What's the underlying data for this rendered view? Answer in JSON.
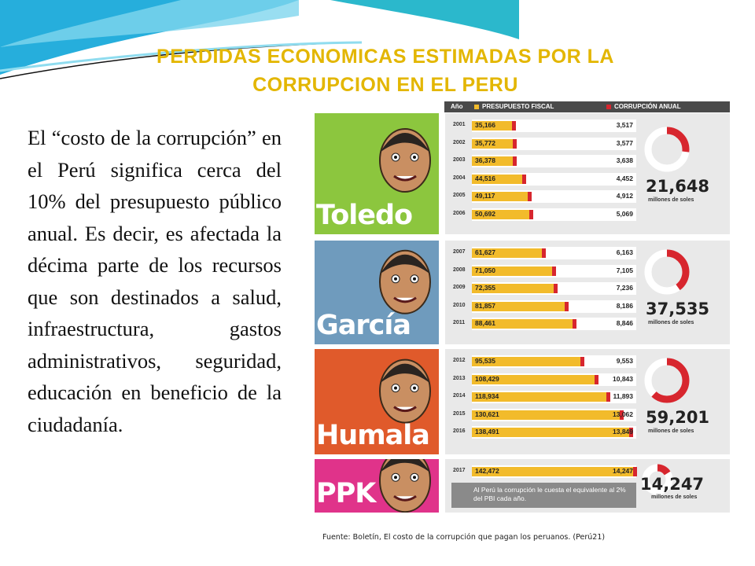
{
  "title": "PERDIDAS ECONOMICAS ESTIMADAS POR LA CORRUPCION EN EL PERU",
  "body_text": "El “costo de la corrupción” en el Perú significa cerca del 10% del presupuesto público anual. Es decir, es afectada la décima parte de los recursos que son destinados a salud, infraestructura, gastos administrativos, seguridad, educación en beneficio de la ciudadanía.",
  "source": "Fuente: Boletín, El costo de la corrupción que pagan los peruanos. (Perú21)",
  "colors": {
    "fiscal": "#f2bb2b",
    "corruption": "#d7262e",
    "title": "#e3b600"
  },
  "chart_data": {
    "type": "bar",
    "legend": {
      "year_label": "Año",
      "fiscal": "PRESUPUESTO FISCAL",
      "corruption": "CORRUPCIÓN ANUAL"
    },
    "groups": [
      {
        "name": "Toledo",
        "color": "#8cc63e",
        "total": "21,648",
        "unit": "millones de soles",
        "total_fraction": 0.27,
        "rows": [
          {
            "year": "2001",
            "fiscal": 35166,
            "fiscal_label": "35,166",
            "corruption": 3517,
            "corruption_label": "3,517"
          },
          {
            "year": "2002",
            "fiscal": 35772,
            "fiscal_label": "35,772",
            "corruption": 3577,
            "corruption_label": "3,577"
          },
          {
            "year": "2003",
            "fiscal": 36378,
            "fiscal_label": "36,378",
            "corruption": 3638,
            "corruption_label": "3,638"
          },
          {
            "year": "2004",
            "fiscal": 44516,
            "fiscal_label": "44,516",
            "corruption": 4452,
            "corruption_label": "4,452"
          },
          {
            "year": "2005",
            "fiscal": 49117,
            "fiscal_label": "49,117",
            "corruption": 4912,
            "corruption_label": "4,912"
          },
          {
            "year": "2006",
            "fiscal": 50692,
            "fiscal_label": "50,692",
            "corruption": 5069,
            "corruption_label": "5,069"
          }
        ]
      },
      {
        "name": "García",
        "color": "#6f9bbd",
        "total": "37,535",
        "unit": "millones de soles",
        "total_fraction": 0.4,
        "rows": [
          {
            "year": "2007",
            "fiscal": 61627,
            "fiscal_label": "61,627",
            "corruption": 6163,
            "corruption_label": "6,163"
          },
          {
            "year": "2008",
            "fiscal": 71050,
            "fiscal_label": "71,050",
            "corruption": 7105,
            "corruption_label": "7,105"
          },
          {
            "year": "2009",
            "fiscal": 72355,
            "fiscal_label": "72,355",
            "corruption": 7236,
            "corruption_label": "7,236"
          },
          {
            "year": "2010",
            "fiscal": 81857,
            "fiscal_label": "81,857",
            "corruption": 8186,
            "corruption_label": "8,186"
          },
          {
            "year": "2011",
            "fiscal": 88461,
            "fiscal_label": "88,461",
            "corruption": 8846,
            "corruption_label": "8,846"
          }
        ]
      },
      {
        "name": "Humala",
        "color": "#e05a2b",
        "total": "59,201",
        "unit": "millones de soles",
        "total_fraction": 0.62,
        "rows": [
          {
            "year": "2012",
            "fiscal": 95535,
            "fiscal_label": "95,535",
            "corruption": 9553,
            "corruption_label": "9,553"
          },
          {
            "year": "2013",
            "fiscal": 108429,
            "fiscal_label": "108,429",
            "corruption": 10843,
            "corruption_label": "10,843"
          },
          {
            "year": "2014",
            "fiscal": 118934,
            "fiscal_label": "118,934",
            "corruption": 11893,
            "corruption_label": "11,893"
          },
          {
            "year": "2015",
            "fiscal": 130621,
            "fiscal_label": "130,621",
            "corruption": 13062,
            "corruption_label": "13,062"
          },
          {
            "year": "2016",
            "fiscal": 138491,
            "fiscal_label": "138,491",
            "corruption": 13849,
            "corruption_label": "13,849"
          }
        ]
      },
      {
        "name": "PPK",
        "color": "#e0338a",
        "total": "14,247",
        "unit": "millones de soles",
        "total_fraction": 0.16,
        "rows": [
          {
            "year": "2017",
            "fiscal": 142472,
            "fiscal_label": "142,472",
            "corruption": 14247,
            "corruption_label": "14,247"
          }
        ],
        "note": "Al Perú la corrupción le cuesta el equivalente al 2% del PBI cada año."
      }
    ]
  }
}
